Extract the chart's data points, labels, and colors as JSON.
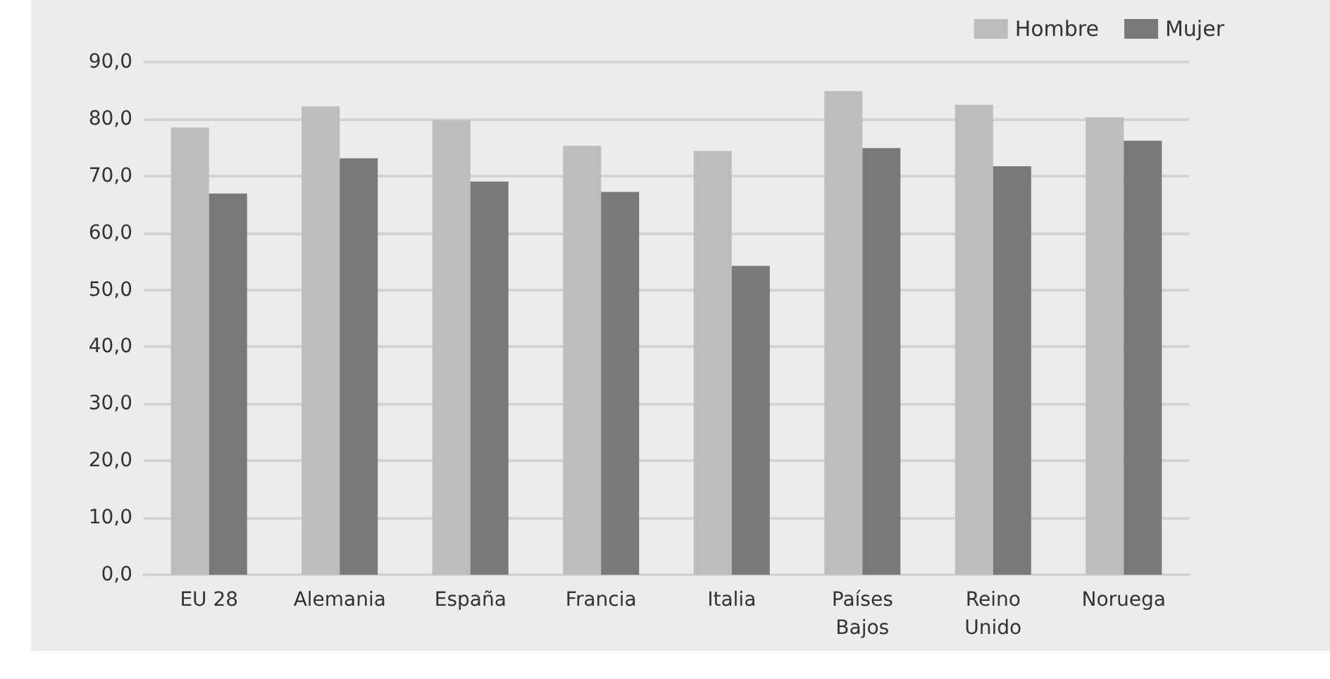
{
  "chart_data": {
    "type": "bar",
    "categories": [
      "EU 28",
      "Alemania",
      "España",
      "Francia",
      "Italia",
      "Países\nBajos",
      "Reino\nUnido",
      "Noruega"
    ],
    "series": [
      {
        "name": "Hombre",
        "color": "#bcbdbf",
        "values": [
          78.5,
          82.2,
          79.8,
          75.3,
          74.4,
          84.9,
          82.5,
          80.3
        ]
      },
      {
        "name": "Mujer",
        "color": "#78797b",
        "values": [
          66.9,
          73.1,
          69.0,
          67.2,
          54.2,
          74.9,
          71.7,
          76.2
        ]
      }
    ],
    "ylim": [
      0,
      90
    ],
    "yticks": [
      {
        "value": 0,
        "label": "0,0"
      },
      {
        "value": 10,
        "label": "10,0"
      },
      {
        "value": 20,
        "label": "20,0"
      },
      {
        "value": 30,
        "label": "30,0"
      },
      {
        "value": 40,
        "label": "40,0"
      },
      {
        "value": 50,
        "label": "50,0"
      },
      {
        "value": 60,
        "label": "60,0"
      },
      {
        "value": 70,
        "label": "70,0"
      },
      {
        "value": 80,
        "label": "80,0"
      },
      {
        "value": 90,
        "label": "90,0"
      }
    ],
    "grid": "y",
    "legend": "top right"
  }
}
